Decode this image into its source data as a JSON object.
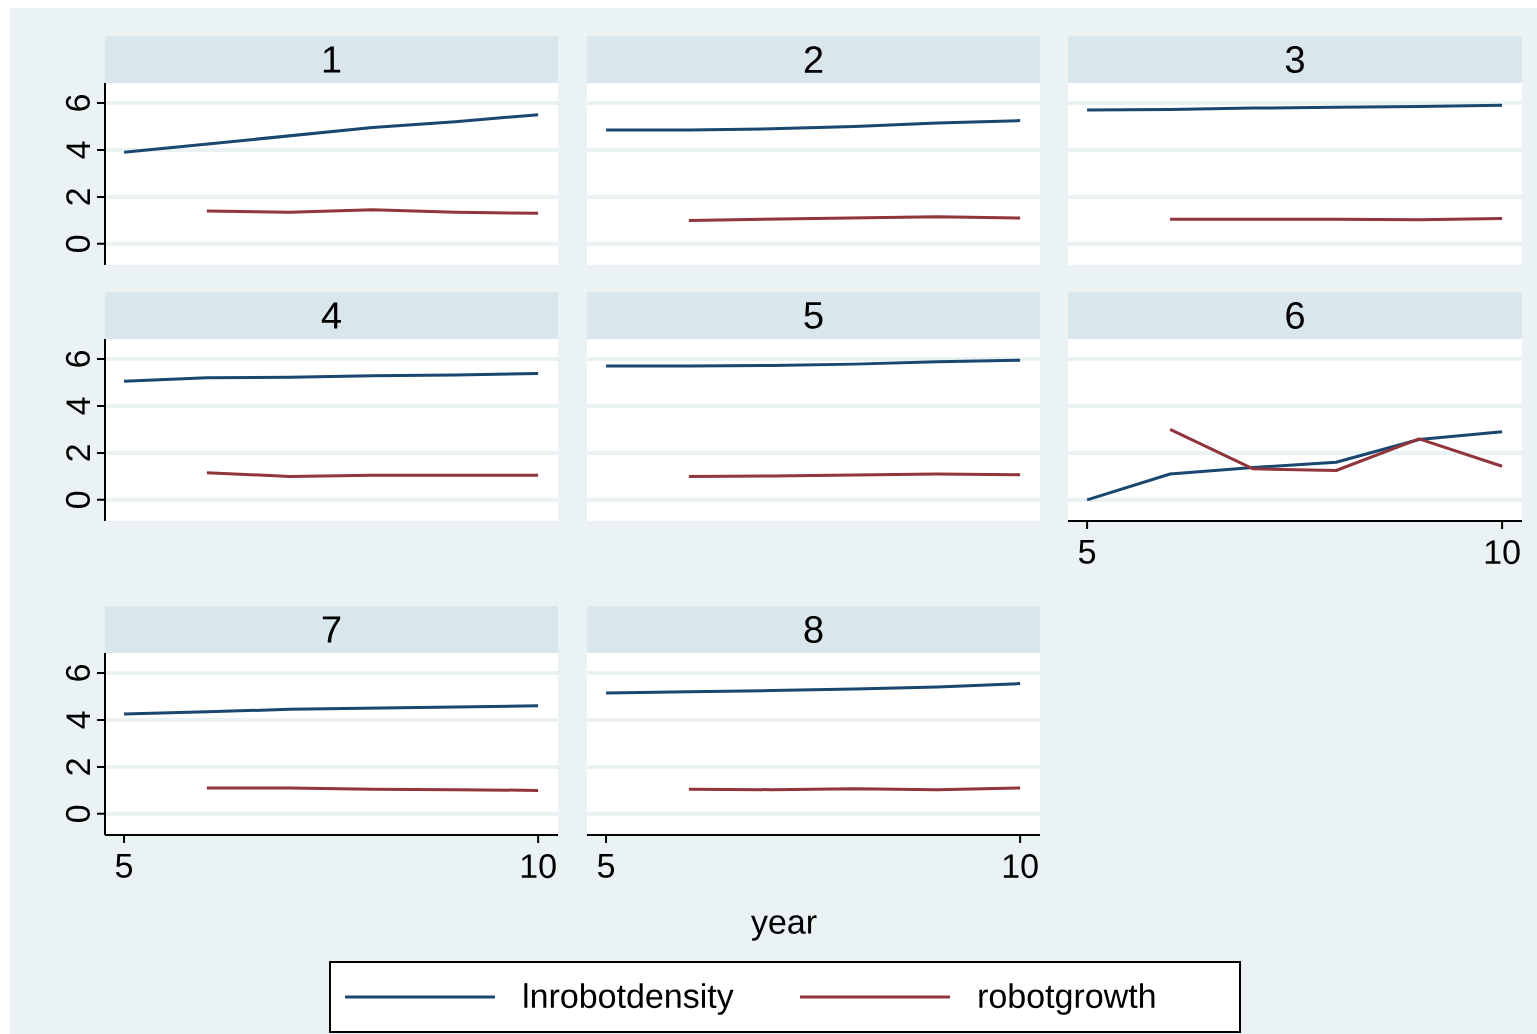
{
  "chart_data": [
    {
      "type": "line",
      "title": "1",
      "x": [
        5,
        6,
        7,
        8,
        9,
        10
      ],
      "xlim": [
        4.77,
        10.24
      ],
      "ylim": [
        -0.9,
        6.85
      ],
      "xticks": [
        5,
        10
      ],
      "yticks": [
        0,
        2,
        4,
        6
      ],
      "grid": "y",
      "tick_labels": "y",
      "series": [
        {
          "color": "#1a476f",
          "values": [
            3.9,
            4.25,
            4.6,
            4.95,
            5.2,
            5.5
          ]
        },
        {
          "color": "#90353b",
          "x": [
            6,
            7,
            8,
            9,
            10
          ],
          "values": [
            1.4,
            1.35,
            1.45,
            1.35,
            1.3
          ]
        }
      ]
    },
    {
      "type": "line",
      "title": "2",
      "x": [
        5,
        6,
        7,
        8,
        9,
        10
      ],
      "xlim": [
        4.77,
        10.24
      ],
      "ylim": [
        -0.9,
        6.85
      ],
      "xticks": [
        5,
        10
      ],
      "yticks": [
        0,
        2,
        4,
        6
      ],
      "grid": "y",
      "tick_labels": false,
      "series": [
        {
          "color": "#1a476f",
          "values": [
            4.85,
            4.85,
            4.9,
            5.0,
            5.15,
            5.25
          ]
        },
        {
          "color": "#90353b",
          "x": [
            6,
            7,
            8,
            9,
            10
          ],
          "values": [
            1.0,
            1.05,
            1.1,
            1.15,
            1.1
          ]
        }
      ]
    },
    {
      "type": "line",
      "title": "3",
      "x": [
        5,
        6,
        7,
        8,
        9,
        10
      ],
      "xlim": [
        4.77,
        10.24
      ],
      "ylim": [
        -0.9,
        6.85
      ],
      "xticks": [
        5,
        10
      ],
      "yticks": [
        0,
        2,
        4,
        6
      ],
      "grid": "y",
      "tick_labels": false,
      "series": [
        {
          "color": "#1a476f",
          "values": [
            5.7,
            5.72,
            5.78,
            5.82,
            5.85,
            5.9
          ]
        },
        {
          "color": "#90353b",
          "x": [
            6,
            7,
            8,
            9,
            10
          ],
          "values": [
            1.05,
            1.05,
            1.05,
            1.03,
            1.08
          ]
        }
      ]
    },
    {
      "type": "line",
      "title": "4",
      "x": [
        5,
        6,
        7,
        8,
        9,
        10
      ],
      "xlim": [
        4.77,
        10.24
      ],
      "ylim": [
        -0.9,
        6.85
      ],
      "xticks": [
        5,
        10
      ],
      "yticks": [
        0,
        2,
        4,
        6
      ],
      "grid": "y",
      "tick_labels": "y",
      "series": [
        {
          "color": "#1a476f",
          "values": [
            5.05,
            5.2,
            5.22,
            5.28,
            5.32,
            5.38
          ]
        },
        {
          "color": "#90353b",
          "x": [
            6,
            7,
            8,
            9,
            10
          ],
          "values": [
            1.15,
            1.0,
            1.05,
            1.05,
            1.05
          ]
        }
      ]
    },
    {
      "type": "line",
      "title": "5",
      "x": [
        5,
        6,
        7,
        8,
        9,
        10
      ],
      "xlim": [
        4.77,
        10.24
      ],
      "ylim": [
        -0.9,
        6.85
      ],
      "xticks": [
        5,
        10
      ],
      "yticks": [
        0,
        2,
        4,
        6
      ],
      "grid": "y",
      "tick_labels": false,
      "series": [
        {
          "color": "#1a476f",
          "values": [
            5.7,
            5.7,
            5.72,
            5.78,
            5.88,
            5.95
          ]
        },
        {
          "color": "#90353b",
          "x": [
            6,
            7,
            8,
            9,
            10
          ],
          "values": [
            1.0,
            1.02,
            1.06,
            1.1,
            1.07
          ]
        }
      ]
    },
    {
      "type": "line",
      "title": "6",
      "x": [
        5,
        6,
        7,
        8,
        9,
        10
      ],
      "xlim": [
        4.77,
        10.24
      ],
      "ylim": [
        -0.9,
        6.85
      ],
      "xticks": [
        5,
        10
      ],
      "yticks": [
        0,
        2,
        4,
        6
      ],
      "grid": "y",
      "tick_labels": "x",
      "series": [
        {
          "color": "#1a476f",
          "values": [
            0.0,
            1.1,
            1.38,
            1.6,
            2.57,
            2.9
          ]
        },
        {
          "color": "#90353b",
          "x": [
            6,
            7,
            8,
            9,
            10
          ],
          "values": [
            3.0,
            1.32,
            1.25,
            2.6,
            1.43
          ]
        }
      ]
    },
    {
      "type": "line",
      "title": "7",
      "x": [
        5,
        6,
        7,
        8,
        9,
        10
      ],
      "xlim": [
        4.77,
        10.24
      ],
      "ylim": [
        -0.9,
        6.85
      ],
      "xticks": [
        5,
        10
      ],
      "yticks": [
        0,
        2,
        4,
        6
      ],
      "grid": "y",
      "series": [
        {
          "color": "#1a476f",
          "values": [
            4.25,
            4.35,
            4.45,
            4.5,
            4.55,
            4.6
          ]
        },
        {
          "color": "#90353b",
          "x": [
            6,
            7,
            8,
            9,
            10
          ],
          "values": [
            1.1,
            1.1,
            1.05,
            1.03,
            1.0
          ]
        }
      ]
    },
    {
      "type": "line",
      "title": "8",
      "xlabel": "year",
      "legend": "bottom",
      "x": [
        5,
        6,
        7,
        8,
        9,
        10
      ],
      "xlim": [
        4.77,
        10.24
      ],
      "ylim": [
        -0.9,
        6.85
      ],
      "xticks": [
        5,
        10
      ],
      "yticks": [
        0,
        2,
        4,
        6
      ],
      "grid": "y",
      "tick_labels": "x",
      "series": [
        {
          "name": "lnrobotdensity",
          "color": "#1a476f",
          "values": [
            5.15,
            5.2,
            5.25,
            5.32,
            5.4,
            5.55
          ]
        },
        {
          "name": "robotgrowth",
          "color": "#90353b",
          "x": [
            6,
            7,
            8,
            9,
            10
          ],
          "values": [
            1.05,
            1.03,
            1.07,
            1.03,
            1.1
          ]
        }
      ]
    }
  ]
}
